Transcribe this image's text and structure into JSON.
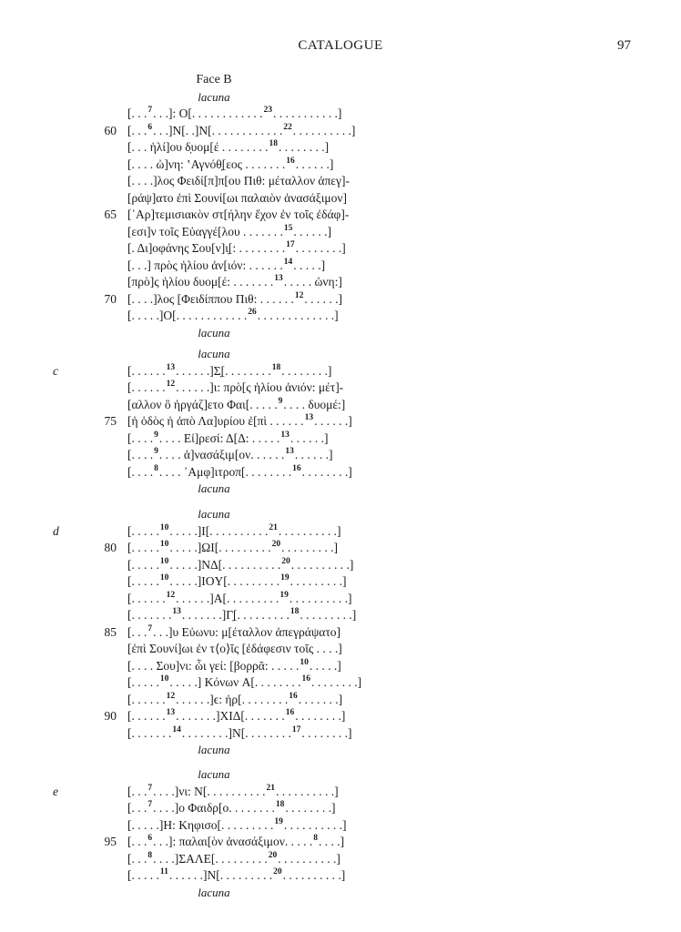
{
  "header": {
    "running_head": "CATALOGUE",
    "page_number": "97"
  },
  "blocks": [
    {
      "face": "Face B",
      "lacuna_before": "lacuna",
      "margin_letter": "",
      "lines": [
        {
          "n": "",
          "parts": [
            "[. . .",
            {
              "sup": "7"
            },
            ". . .]: O[. . . . . . . . . . . .",
            {
              "sup": "23"
            },
            ". . . . . . . . . . .]"
          ]
        },
        {
          "n": "60",
          "parts": [
            "[. . .",
            {
              "sup": "6"
            },
            ". . .]N[. .]N[. . . . . . . . . . . .",
            {
              "sup": "22"
            },
            ". . . . . . . . . .]"
          ]
        },
        {
          "n": "",
          "parts": [
            "[. . . ἡλί]ου δ̣υομ[έ . . . . . . . .",
            {
              "sup": "18"
            },
            ". . . . . . . .]"
          ]
        },
        {
          "n": "",
          "parts": [
            "[. . . . ὠ]νη: ʽΑγνόθ̣[εος . . . . . . .",
            {
              "sup": "16"
            },
            ". . . . . .]"
          ]
        },
        {
          "n": "",
          "parts": [
            "[. . . .]λος Φειδί[π]π[ου Πιθ: μέταλλον ἀπεγ]-"
          ]
        },
        {
          "n": "",
          "parts": [
            "[ράψ]ατο ἐπὶ Σουνί[ωι παλαιὸν ἀνασάξιμον]"
          ]
        },
        {
          "n": "65",
          "parts": [
            "[᾿Αρ]τεμισιακὸν στ[ήλην ἔχον ἐν τοῖς ἐδάφ]-"
          ]
        },
        {
          "n": "",
          "parts": [
            "[εσι]ν τοῖς Εὐαγγέ[λου . . . . . . .",
            {
              "sup": "15"
            },
            ". . . . . .]"
          ]
        },
        {
          "n": "",
          "parts": [
            "[. Δι]οφάνης Σου[ν]ι̣[: . . . . . . . .",
            {
              "sup": "17"
            },
            ". . . . . . . .]"
          ]
        },
        {
          "n": "",
          "parts": [
            "[. . .] πρὸς ἡλίου ἀν[ιόν: . . . . . .",
            {
              "sup": "14"
            },
            ". . . . .]"
          ]
        },
        {
          "n": "",
          "parts": [
            "[πρὸ]ς ἡλίου δυομ[έ: . . . . . . .",
            {
              "sup": "13"
            },
            ". . . . . ὠνη:]"
          ]
        },
        {
          "n": "70",
          "parts": [
            "[. . . .]λος [Φειδίππου Πιθ: . . . . . .",
            {
              "sup": "12"
            },
            ". . . . . .]"
          ]
        },
        {
          "n": "",
          "parts": [
            "[. . . . .]O[. . . . . . . . . . . .",
            {
              "sup": "26"
            },
            ". . . . . . . . . . . . .]"
          ]
        }
      ],
      "lacuna_after": "lacuna"
    },
    {
      "face": "",
      "lacuna_before": "lacuna",
      "margin_letter": "c",
      "lines": [
        {
          "n": "",
          "parts": [
            "[. . . . . .",
            {
              "sup": "13"
            },
            ". . . . . .]Σ̣[. . . . . . . .",
            {
              "sup": "18"
            },
            ". . . . . . . .]"
          ]
        },
        {
          "n": "",
          "parts": [
            "[. . . . . .",
            {
              "sup": "12"
            },
            ". . . . . .]ι: πρὸ[ς ἡλίου ἀνιόν: μέτ]-"
          ]
        },
        {
          "n": "",
          "parts": [
            "[αλλον ὃ ἠργάζ]ετο Φαι[. . . . .",
            {
              "sup": "9"
            },
            ". . . . δυομέ:]"
          ]
        },
        {
          "n": "75",
          "parts": [
            "[ἡ ὁδὸς ἡ ἀπὸ Λα]υρίου ἐ[πὶ . . . . . .",
            {
              "sup": "13"
            },
            ". . . . . .]"
          ]
        },
        {
          "n": "",
          "parts": [
            "[. . . .",
            {
              "sup": "9"
            },
            ". . . . Εἰ]ρεσί: Δ[Δ: . . . . .",
            {
              "sup": "13"
            },
            ". . . . . .]"
          ]
        },
        {
          "n": "",
          "parts": [
            "[. . . .",
            {
              "sup": "9"
            },
            ". . . . ἀ]νασάξιμ[ον. . . . . .",
            {
              "sup": "13"
            },
            ". . . . . .]"
          ]
        },
        {
          "n": "",
          "parts": [
            "[. . . .",
            {
              "sup": "8"
            },
            ". . . . ᾿Αμφ]ιτροπ[. . . . . . . .",
            {
              "sup": "16"
            },
            ". . . . . . . .]"
          ]
        }
      ],
      "lacuna_after": "lacuna"
    },
    {
      "face": "",
      "lacuna_before": "lacuna",
      "margin_letter": "d",
      "lines": [
        {
          "n": "",
          "parts": [
            "[. . . . .",
            {
              "sup": "10"
            },
            ". . . . .]I[. . . . . . . . . .",
            {
              "sup": "21"
            },
            ". . . . . . . . . .]"
          ]
        },
        {
          "n": "80",
          "parts": [
            "[. . . . .",
            {
              "sup": "10"
            },
            ". . . . .]ΩI[. . . . . . . . .",
            {
              "sup": "20"
            },
            ". . . . . . . . .]"
          ]
        },
        {
          "n": "",
          "parts": [
            "[. . . . .",
            {
              "sup": "10"
            },
            ". . . . .]ΝΔ[. . . . . . . . . .",
            {
              "sup": "20"
            },
            ". . . . . . . . . .]"
          ]
        },
        {
          "n": "",
          "parts": [
            "[. . . . .",
            {
              "sup": "10"
            },
            ". . . . .]IOY[. . . . . . . . .",
            {
              "sup": "19"
            },
            ". . . . . . . . .]"
          ]
        },
        {
          "n": "",
          "parts": [
            "[. . . . . .",
            {
              "sup": "12"
            },
            ". . . . . .]A[. . . . . . . . .",
            {
              "sup": "19"
            },
            ". . . . . . . . . .]"
          ]
        },
        {
          "n": "",
          "parts": [
            "[. . . . . . .",
            {
              "sup": "13"
            },
            ". . . . . . .]Γ̣[. . . . . . . . .",
            {
              "sup": "18"
            },
            ". . . . . . . . .]"
          ]
        },
        {
          "n": "85",
          "parts": [
            "[. . .",
            {
              "sup": "7"
            },
            ". . .]υ Εὐωνυ: μ[έταλλον ἀπεγράψατο]"
          ]
        },
        {
          "n": "",
          "parts": [
            "[ἐπὶ Σουνί]ωι ἐν τ⟨ο⟩ῖς [ἐδάφεσιν τοῖς . . . .]"
          ]
        },
        {
          "n": "",
          "parts": [
            "[. . . . Σου]νι: ὧι γεί: [βορρᾶ: . . . . .",
            {
              "sup": "10"
            },
            ". . . . .]"
          ]
        },
        {
          "n": "",
          "parts": [
            "[. . . . .",
            {
              "sup": "10"
            },
            ". . . . .] Κόνων A[. . . . . . . .",
            {
              "sup": "16"
            },
            ". . . . . . . .]"
          ]
        },
        {
          "n": "",
          "parts": [
            "[. . . . . .",
            {
              "sup": "12"
            },
            ". . . . . .]ϵ: ἠρ[. . . . . . . .",
            {
              "sup": "16"
            },
            ". . . . . . .]"
          ]
        },
        {
          "n": "90",
          "parts": [
            "[. . . . . .",
            {
              "sup": "13"
            },
            ". . . . . . .]XIΔ[. . . . . . .",
            {
              "sup": "16"
            },
            ". . . . . . . .]"
          ]
        },
        {
          "n": "",
          "parts": [
            "[. . . . . . .",
            {
              "sup": "14"
            },
            ". . . . . . . .]N[. . . . . . . .",
            {
              "sup": "17"
            },
            ". . . . . . . .]"
          ]
        }
      ],
      "lacuna_after": "lacuna"
    },
    {
      "face": "",
      "lacuna_before": "lacuna",
      "margin_letter": "e",
      "lines": [
        {
          "n": "",
          "parts": [
            "[. . .",
            {
              "sup": "7"
            },
            ". . . .]νι: N[. . . . . . . . . .",
            {
              "sup": "21"
            },
            ". . . . . . . . . .]"
          ]
        },
        {
          "n": "",
          "parts": [
            "[. . .",
            {
              "sup": "7"
            },
            ". . . .]ο Φαιδρ[ο. . . . . . . .",
            {
              "sup": "18"
            },
            ". . . . . . . .]"
          ]
        },
        {
          "n": "",
          "parts": [
            "[. . . . .]H: Κηφισο[. . . . . . . . .",
            {
              "sup": "19"
            },
            ". . . . . . . . . .]"
          ]
        },
        {
          "n": "95",
          "parts": [
            "[. . .",
            {
              "sup": "6"
            },
            ". . .]: παλαι[ὸν ἀνασάξιμον. . . . .",
            {
              "sup": "8"
            },
            ". . . .]"
          ]
        },
        {
          "n": "",
          "parts": [
            "[. . .",
            {
              "sup": "8"
            },
            ". . . .]ΣΑΛΕ[. . . . . . . . .",
            {
              "sup": "20"
            },
            ". . . . . . . . . .]"
          ]
        },
        {
          "n": "",
          "parts": [
            "[. . . . .",
            {
              "sup": "11"
            },
            ". . . . . .]N[. . . . . . . . .",
            {
              "sup": "20"
            },
            ". . . . . . . . . .]"
          ]
        }
      ],
      "lacuna_after": "lacuna"
    }
  ]
}
